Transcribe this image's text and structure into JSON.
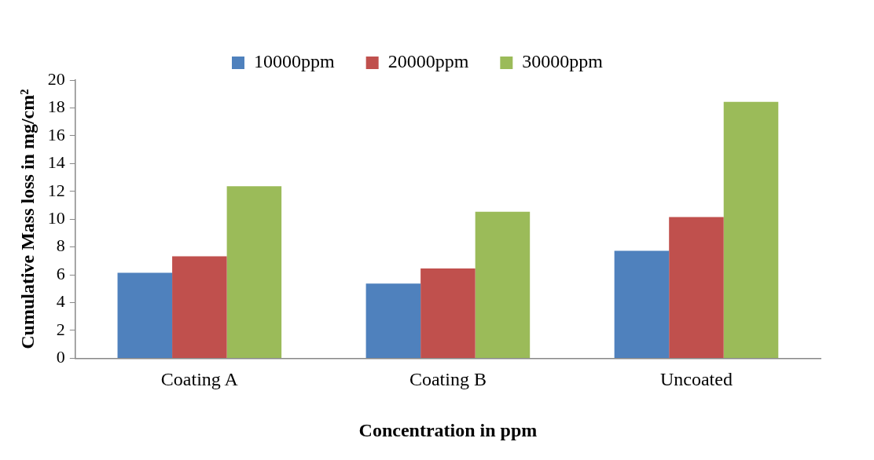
{
  "chart_data": {
    "type": "bar",
    "categories": [
      "Coating A",
      "Coating B",
      "Uncoated"
    ],
    "series": [
      {
        "name": "10000ppm",
        "color": "#4f81bd",
        "values": [
          6.15,
          5.37,
          7.72
        ]
      },
      {
        "name": "20000ppm",
        "color": "#c0504d",
        "values": [
          7.33,
          6.45,
          10.15
        ]
      },
      {
        "name": "30000ppm",
        "color": "#9bbb59",
        "values": [
          12.37,
          10.54,
          18.44
        ]
      }
    ],
    "xlabel": "Concentration in ppm",
    "ylabel": "Cumulative Mass loss in mg/cm²",
    "ylim": [
      0,
      20
    ],
    "yticks": [
      0,
      2,
      4,
      6,
      8,
      10,
      12,
      14,
      16,
      18,
      20
    ],
    "grid": false,
    "legend": "top"
  }
}
